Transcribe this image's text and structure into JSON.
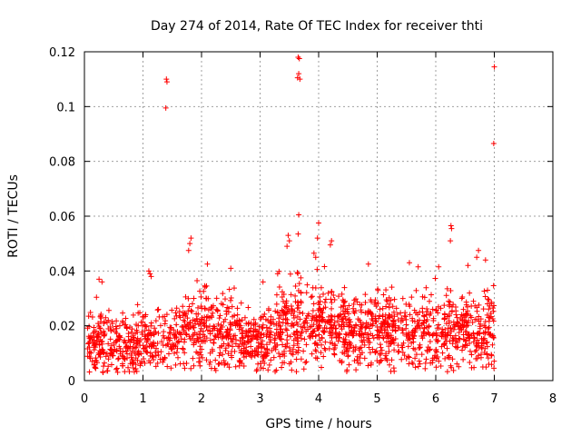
{
  "chart_data": {
    "type": "scatter",
    "title": "Day 274 of 2014, Rate Of TEC Index for receiver thti",
    "xlabel": "GPS time / hours",
    "ylabel": "ROTI / TECUs",
    "xlim": [
      0,
      8
    ],
    "ylim": [
      0,
      0.12
    ],
    "grid": true,
    "marker": "+",
    "series_color": "#ff0000",
    "xticks": [
      0,
      1,
      2,
      3,
      4,
      5,
      6,
      7,
      8
    ],
    "xtick_labels": [
      "0",
      "1",
      "2",
      "3",
      "4",
      "5",
      "6",
      "7",
      "8"
    ],
    "yticks": [
      0,
      0.02,
      0.04,
      0.06,
      0.08,
      0.1,
      0.12
    ],
    "ytick_labels": [
      "0",
      "0.02",
      "0.04",
      "0.06",
      "0.08",
      "0.1",
      "0.12"
    ],
    "outliers": [
      {
        "x": 1.4,
        "y": 0.11
      },
      {
        "x": 1.41,
        "y": 0.109
      },
      {
        "x": 1.39,
        "y": 0.0995
      },
      {
        "x": 3.65,
        "y": 0.118
      },
      {
        "x": 3.67,
        "y": 0.1175
      },
      {
        "x": 3.66,
        "y": 0.112
      },
      {
        "x": 3.68,
        "y": 0.11
      },
      {
        "x": 3.64,
        "y": 0.1105
      },
      {
        "x": 7.0,
        "y": 0.1145
      },
      {
        "x": 6.99,
        "y": 0.0865
      },
      {
        "x": 3.66,
        "y": 0.0605
      },
      {
        "x": 3.65,
        "y": 0.0535
      },
      {
        "x": 4.0,
        "y": 0.0575
      },
      {
        "x": 3.98,
        "y": 0.052
      },
      {
        "x": 6.26,
        "y": 0.0565
      },
      {
        "x": 6.27,
        "y": 0.0555
      },
      {
        "x": 6.25,
        "y": 0.051
      },
      {
        "x": 1.82,
        "y": 0.052
      },
      {
        "x": 1.8,
        "y": 0.05
      },
      {
        "x": 1.78,
        "y": 0.0475
      },
      {
        "x": 3.48,
        "y": 0.053
      },
      {
        "x": 3.5,
        "y": 0.051
      },
      {
        "x": 3.46,
        "y": 0.049
      },
      {
        "x": 4.22,
        "y": 0.051
      },
      {
        "x": 4.2,
        "y": 0.0495
      },
      {
        "x": 6.73,
        "y": 0.0475
      },
      {
        "x": 6.7,
        "y": 0.045
      },
      {
        "x": 3.92,
        "y": 0.0465
      },
      {
        "x": 3.95,
        "y": 0.045
      },
      {
        "x": 1.1,
        "y": 0.04
      },
      {
        "x": 1.12,
        "y": 0.039
      },
      {
        "x": 1.14,
        "y": 0.038
      },
      {
        "x": 2.1,
        "y": 0.0425
      },
      {
        "x": 2.5,
        "y": 0.041
      },
      {
        "x": 4.85,
        "y": 0.0425
      },
      {
        "x": 5.55,
        "y": 0.043
      },
      {
        "x": 5.7,
        "y": 0.0415
      },
      {
        "x": 6.05,
        "y": 0.0415
      },
      {
        "x": 6.55,
        "y": 0.042
      },
      {
        "x": 6.85,
        "y": 0.044
      },
      {
        "x": 0.25,
        "y": 0.037
      },
      {
        "x": 0.3,
        "y": 0.036
      },
      {
        "x": 3.05,
        "y": 0.036
      },
      {
        "x": 3.3,
        "y": 0.039
      }
    ],
    "bulk": {
      "description": "Dense band of ROTI points from ~0.003 to ~0.04 TECU/s spanning 0.05–7.0 h",
      "x_range": [
        0.05,
        7.0
      ],
      "point_count": 1900,
      "profile": [
        {
          "x": 0.0,
          "center": 0.0135,
          "spread": 0.011
        },
        {
          "x": 0.5,
          "center": 0.013,
          "spread": 0.011
        },
        {
          "x": 1.0,
          "center": 0.014,
          "spread": 0.012
        },
        {
          "x": 1.5,
          "center": 0.015,
          "spread": 0.012
        },
        {
          "x": 2.0,
          "center": 0.019,
          "spread": 0.016
        },
        {
          "x": 2.5,
          "center": 0.017,
          "spread": 0.014
        },
        {
          "x": 3.0,
          "center": 0.014,
          "spread": 0.012
        },
        {
          "x": 3.5,
          "center": 0.019,
          "spread": 0.016
        },
        {
          "x": 4.0,
          "center": 0.02,
          "spread": 0.016
        },
        {
          "x": 4.5,
          "center": 0.018,
          "spread": 0.015
        },
        {
          "x": 5.0,
          "center": 0.017,
          "spread": 0.014
        },
        {
          "x": 5.5,
          "center": 0.017,
          "spread": 0.014
        },
        {
          "x": 6.0,
          "center": 0.019,
          "spread": 0.015
        },
        {
          "x": 6.5,
          "center": 0.017,
          "spread": 0.014
        },
        {
          "x": 7.0,
          "center": 0.018,
          "spread": 0.015
        }
      ]
    }
  }
}
